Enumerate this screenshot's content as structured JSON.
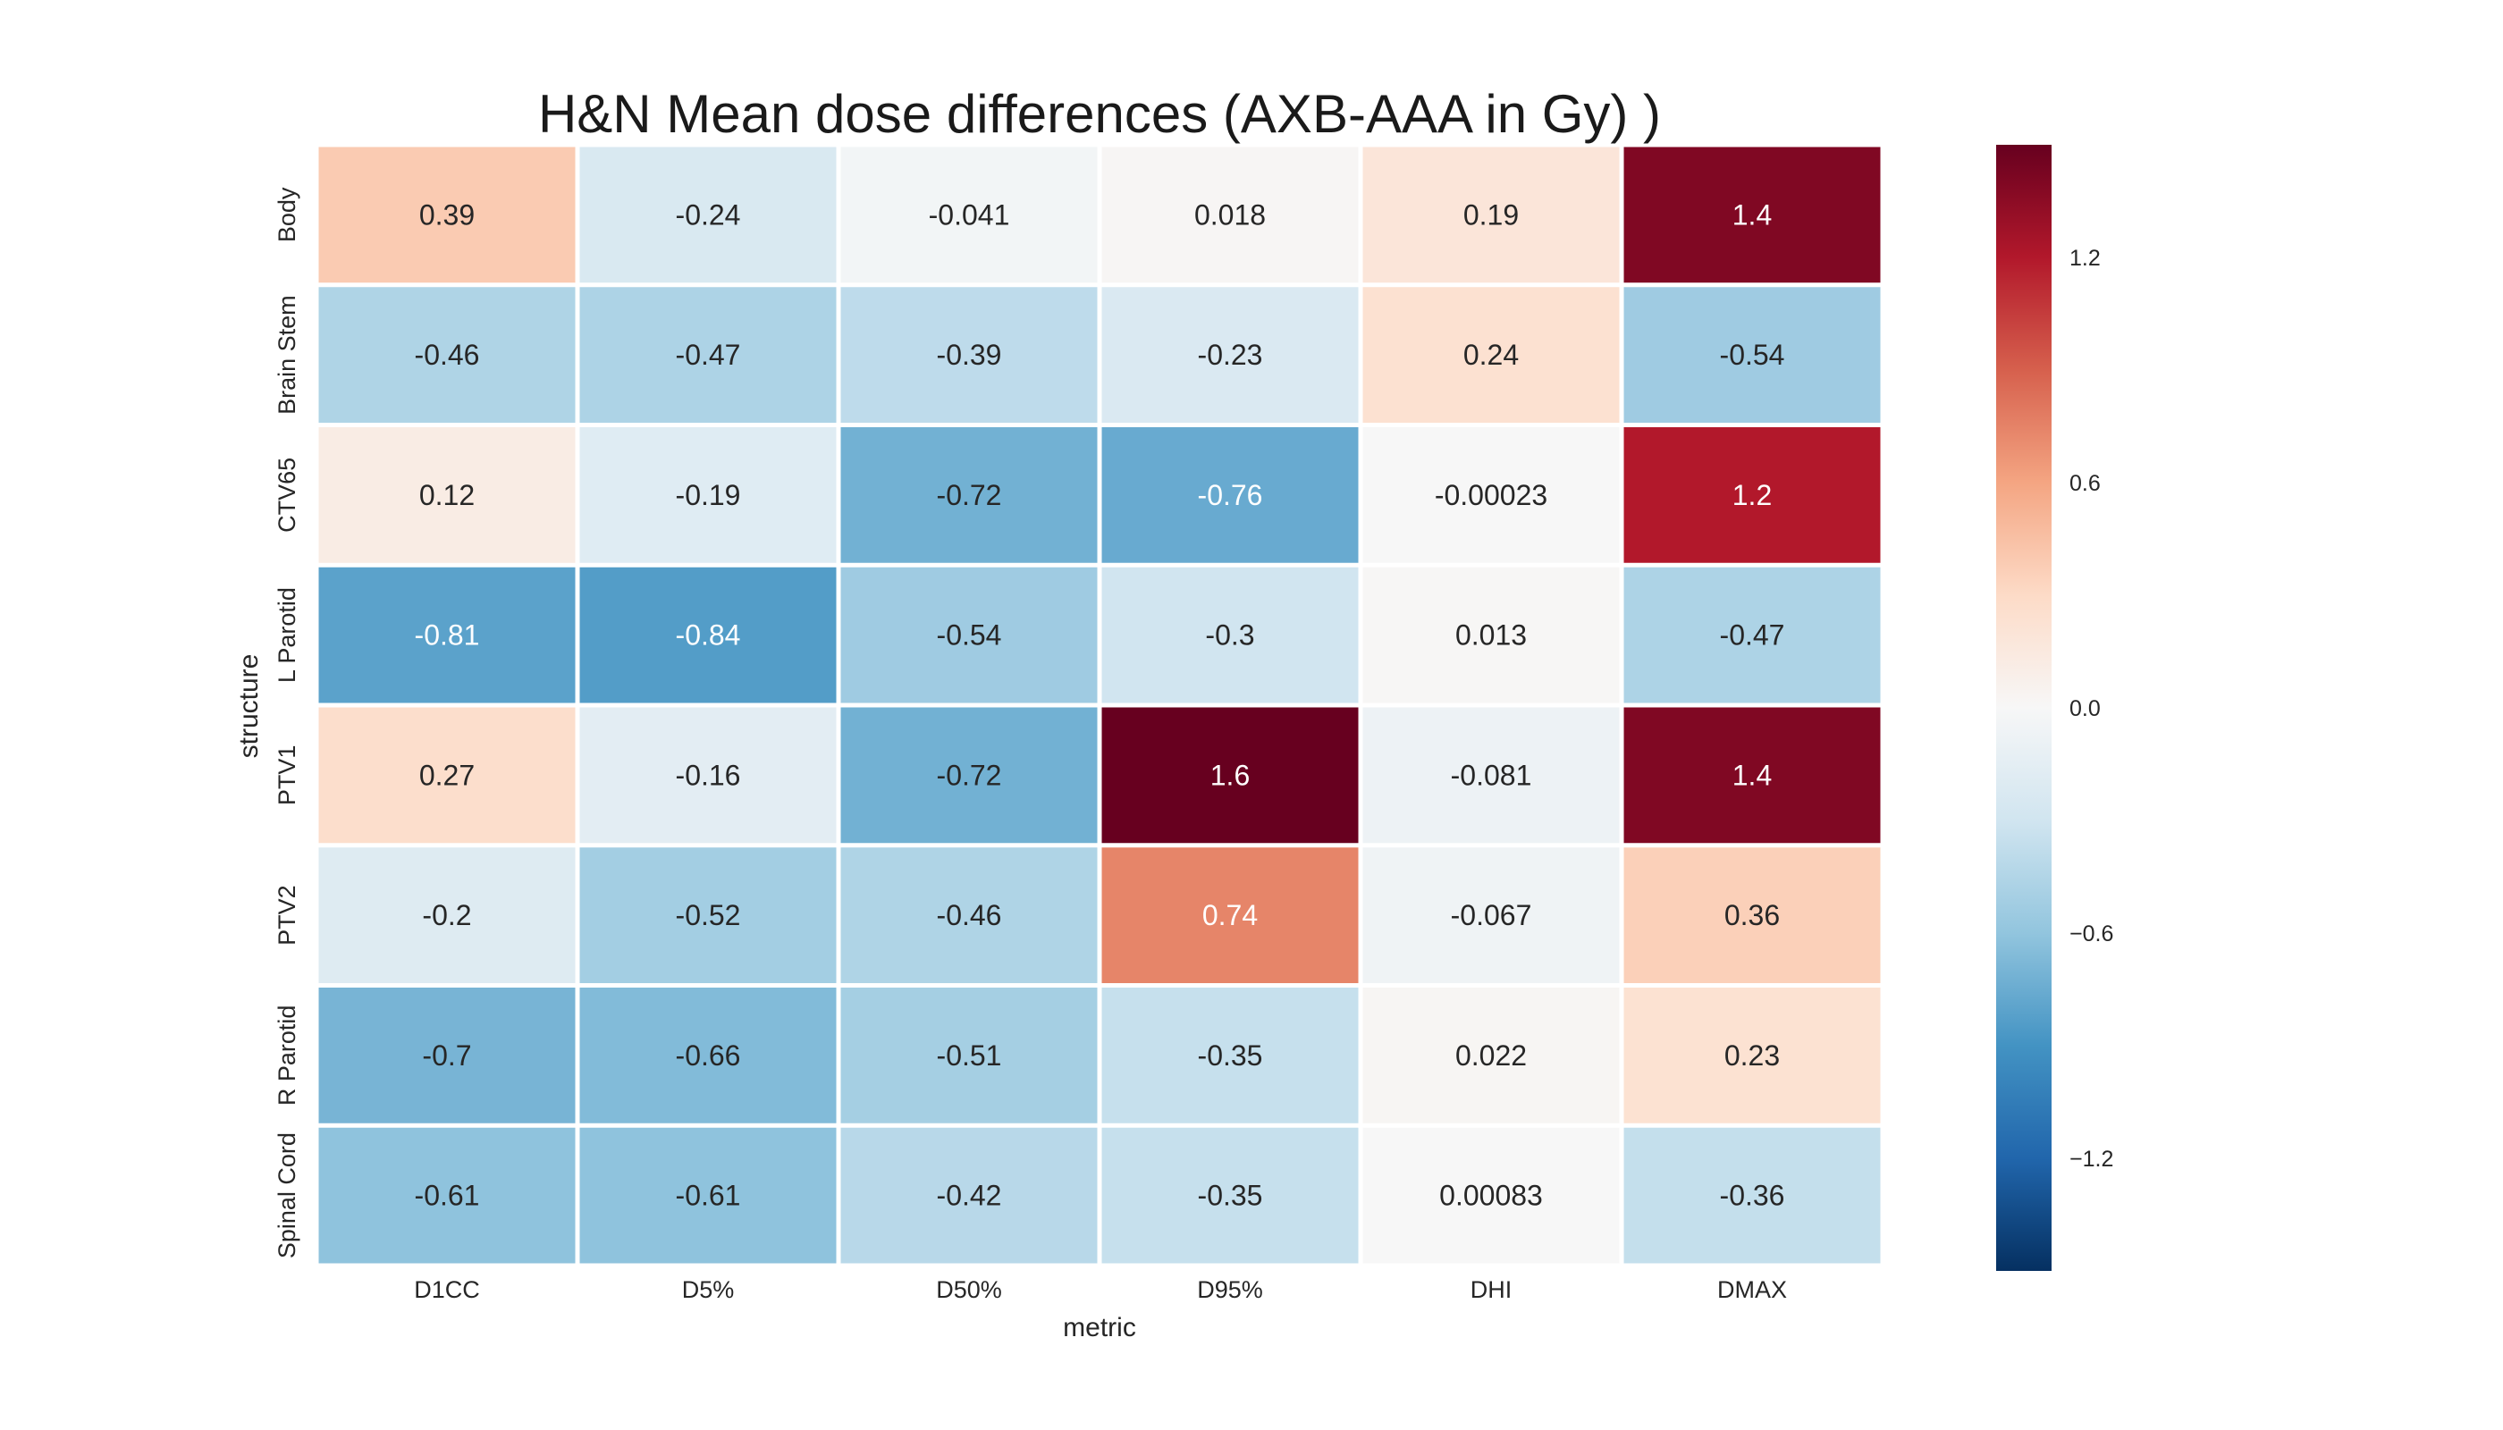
{
  "chart_data": {
    "type": "heatmap",
    "title": "H&N Mean dose differences (AXB-AAA in Gy)  )",
    "xlabel": "metric",
    "ylabel": "structure",
    "x_categories": [
      "D1CC",
      "D5%",
      "D50%",
      "D95%",
      "DHI",
      "DMAX"
    ],
    "y_categories": [
      "Body",
      "Brain Stem",
      "CTV65",
      "L Parotid",
      "PTV1",
      "PTV2",
      "R Parotid",
      "Spinal Cord"
    ],
    "values": [
      [
        0.39,
        -0.24,
        -0.041,
        0.018,
        0.19,
        1.4
      ],
      [
        -0.46,
        -0.47,
        -0.39,
        -0.23,
        0.24,
        -0.54
      ],
      [
        0.12,
        -0.19,
        -0.72,
        -0.76,
        -0.00023,
        1.2
      ],
      [
        -0.81,
        -0.84,
        -0.54,
        -0.3,
        0.013,
        -0.47
      ],
      [
        0.27,
        -0.16,
        -0.72,
        1.6,
        -0.081,
        1.4
      ],
      [
        -0.2,
        -0.52,
        -0.46,
        0.74,
        -0.067,
        0.36
      ],
      [
        -0.7,
        -0.66,
        -0.51,
        -0.35,
        0.022,
        0.23
      ],
      [
        -0.61,
        -0.61,
        -0.42,
        -0.35,
        0.00083,
        -0.36
      ]
    ],
    "value_labels": [
      [
        "0.39",
        "-0.24",
        "-0.041",
        "0.018",
        "0.19",
        "1.4"
      ],
      [
        "-0.46",
        "-0.47",
        "-0.39",
        "-0.23",
        "0.24",
        "-0.54"
      ],
      [
        "0.12",
        "-0.19",
        "-0.72",
        "-0.76",
        "-0.00023",
        "1.2"
      ],
      [
        "-0.81",
        "-0.84",
        "-0.54",
        "-0.3",
        "0.013",
        "-0.47"
      ],
      [
        "0.27",
        "-0.16",
        "-0.72",
        "1.6",
        "-0.081",
        "1.4"
      ],
      [
        "-0.2",
        "-0.52",
        "-0.46",
        "0.74",
        "-0.067",
        "0.36"
      ],
      [
        "-0.7",
        "-0.66",
        "-0.51",
        "-0.35",
        "0.022",
        "0.23"
      ],
      [
        "-0.61",
        "-0.61",
        "-0.42",
        "-0.35",
        "0.00083",
        "-0.36"
      ]
    ],
    "colormap": "RdBu_r",
    "colorbar": {
      "vmin": -1.5,
      "vmax": 1.5,
      "ticks": [
        1.2,
        0.6,
        0.0,
        -0.6,
        -1.2
      ],
      "tick_labels": [
        "1.2",
        "0.6",
        "0.0",
        "−0.6",
        "−1.2"
      ]
    },
    "colors": {
      "cmap_stops": [
        "#053061",
        "#2166ac",
        "#4393c3",
        "#92c5de",
        "#d1e5f0",
        "#f7f7f7",
        "#fddbc7",
        "#f4a582",
        "#d6604d",
        "#b2182b",
        "#67001f"
      ],
      "grid_lines": "#ffffff",
      "text_dark": "#262626",
      "text_light": "#ffffff"
    },
    "grid": true
  }
}
